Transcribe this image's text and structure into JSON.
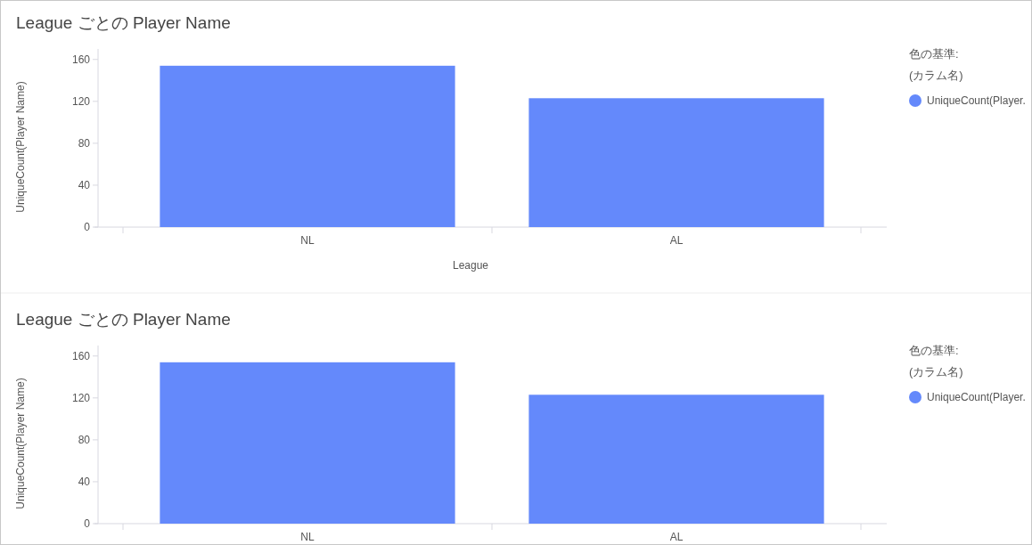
{
  "chart_data": [
    {
      "type": "bar",
      "title": "League ごとの Player Name",
      "xlabel": "League",
      "ylabel": "UniqueCount(Player Name)",
      "legend_title": "色の基準:\n(カラム名)",
      "categories": [
        "NL",
        "AL"
      ],
      "series": [
        {
          "name": "UniqueCount(Player.",
          "color": "#6489fb",
          "values": [
            154,
            123
          ]
        }
      ],
      "ylim": [
        0,
        170
      ],
      "yticks": [
        0,
        40,
        80,
        120,
        160
      ],
      "legend": "top right"
    },
    {
      "type": "bar",
      "title": "League ごとの Player Name",
      "ylabel": "UniqueCount(Player Name)",
      "legend_title": "色の基準:\n(カラム名)",
      "categories": [
        "NL",
        "AL"
      ],
      "series": [
        {
          "name": "UniqueCount(Player.",
          "color": "#6489fb",
          "values": [
            154,
            123
          ]
        }
      ],
      "ylim": [
        0,
        170
      ],
      "yticks": [
        0,
        40,
        80,
        120,
        160
      ],
      "legend": "top right"
    }
  ]
}
